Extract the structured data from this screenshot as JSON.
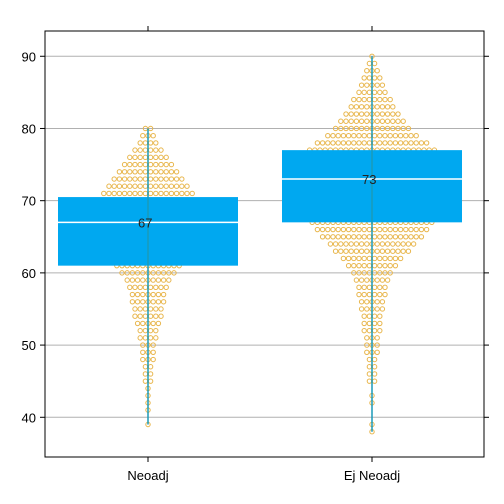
{
  "chart_data": {
    "type": "box",
    "title": "",
    "xlabel": "",
    "ylabel": "",
    "categories": [
      "Neoadj",
      "Ej Neoadj"
    ],
    "ylim": [
      34.5,
      93.5
    ],
    "yticks": [
      40,
      50,
      60,
      70,
      80,
      90
    ],
    "grid": true,
    "boxes": [
      {
        "category": "Neoadj",
        "q1": 61,
        "median": 67,
        "q3": 70.5,
        "whisker_low": 39,
        "whisker_high": 80,
        "label": "67",
        "distribution": [
          [
            39,
            1
          ],
          [
            41,
            1
          ],
          [
            42,
            1
          ],
          [
            43,
            1
          ],
          [
            44,
            1
          ],
          [
            45,
            2
          ],
          [
            46,
            2
          ],
          [
            47,
            2
          ],
          [
            48,
            3
          ],
          [
            49,
            3
          ],
          [
            50,
            3
          ],
          [
            51,
            4
          ],
          [
            52,
            4
          ],
          [
            53,
            5
          ],
          [
            54,
            6
          ],
          [
            55,
            6
          ],
          [
            56,
            7
          ],
          [
            57,
            7
          ],
          [
            58,
            8
          ],
          [
            59,
            9
          ],
          [
            60,
            11
          ],
          [
            61,
            13
          ],
          [
            62,
            16
          ],
          [
            63,
            19
          ],
          [
            64,
            20
          ],
          [
            65,
            22
          ],
          [
            66,
            24
          ],
          [
            67,
            24
          ],
          [
            68,
            24
          ],
          [
            69,
            23
          ],
          [
            70,
            21
          ],
          [
            71,
            18
          ],
          [
            72,
            16
          ],
          [
            73,
            14
          ],
          [
            74,
            12
          ],
          [
            75,
            10
          ],
          [
            76,
            8
          ],
          [
            77,
            6
          ],
          [
            78,
            4
          ],
          [
            79,
            3
          ],
          [
            80,
            2
          ]
        ]
      },
      {
        "category": "Ej Neoadj",
        "q1": 67,
        "median": 73,
        "q3": 77,
        "whisker_low": 38,
        "whisker_high": 90,
        "label": "73",
        "distribution": [
          [
            38,
            1
          ],
          [
            39,
            1
          ],
          [
            42,
            1
          ],
          [
            43,
            1
          ],
          [
            45,
            2
          ],
          [
            46,
            2
          ],
          [
            47,
            2
          ],
          [
            48,
            2
          ],
          [
            49,
            3
          ],
          [
            50,
            3
          ],
          [
            51,
            3
          ],
          [
            52,
            4
          ],
          [
            53,
            4
          ],
          [
            54,
            4
          ],
          [
            55,
            5
          ],
          [
            56,
            5
          ],
          [
            57,
            6
          ],
          [
            58,
            6
          ],
          [
            59,
            7
          ],
          [
            60,
            8
          ],
          [
            61,
            10
          ],
          [
            62,
            12
          ],
          [
            63,
            15
          ],
          [
            64,
            17
          ],
          [
            65,
            20
          ],
          [
            66,
            22
          ],
          [
            67,
            24
          ],
          [
            68,
            25
          ],
          [
            69,
            26
          ],
          [
            70,
            27
          ],
          [
            71,
            28
          ],
          [
            72,
            29
          ],
          [
            73,
            29
          ],
          [
            74,
            28
          ],
          [
            75,
            27
          ],
          [
            76,
            26
          ],
          [
            77,
            25
          ],
          [
            78,
            22
          ],
          [
            79,
            18
          ],
          [
            80,
            15
          ],
          [
            81,
            13
          ],
          [
            82,
            11
          ],
          [
            83,
            9
          ],
          [
            84,
            8
          ],
          [
            85,
            6
          ],
          [
            86,
            5
          ],
          [
            87,
            4
          ],
          [
            88,
            3
          ],
          [
            89,
            2
          ],
          [
            90,
            1
          ]
        ]
      }
    ],
    "colors": {
      "box": "#00a8f0",
      "median_line": "#ffffff",
      "whisker": "#1b9ab8",
      "points": "#e8b64c",
      "grid": "#b0b0b0",
      "frame": "#000000"
    }
  }
}
